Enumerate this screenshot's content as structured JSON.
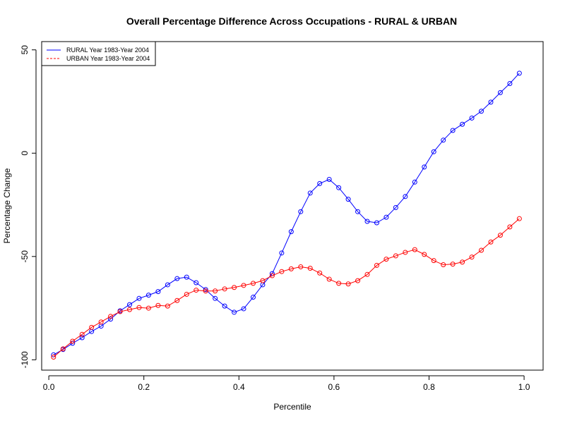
{
  "chart_data": {
    "type": "line",
    "title": "Overall Percentage Difference Across Occupations - RURAL & URBAN",
    "xlabel": "Percentile",
    "ylabel": "Percentage Change",
    "xlim": [
      -0.015,
      1.04
    ],
    "ylim": [
      -105,
      54
    ],
    "x_ticks": [
      0.0,
      0.2,
      0.4,
      0.6,
      0.8,
      1.0
    ],
    "x_tick_labels": [
      "0.0",
      "0.2",
      "0.4",
      "0.6",
      "0.8",
      "1.0"
    ],
    "y_ticks": [
      -100,
      -50,
      0,
      50
    ],
    "y_tick_labels": [
      "-100",
      "-50",
      "0",
      "50"
    ],
    "grid": false,
    "legend_position": "top-left",
    "series": [
      {
        "name": "RURAL Year 1983-Year 2004",
        "color": "#0000ff",
        "line_style": "solid",
        "marker": "circle",
        "x": [
          0.01,
          0.03,
          0.05,
          0.07,
          0.09,
          0.11,
          0.13,
          0.15,
          0.17,
          0.19,
          0.21,
          0.23,
          0.25,
          0.27,
          0.29,
          0.31,
          0.33,
          0.35,
          0.37,
          0.39,
          0.41,
          0.43,
          0.45,
          0.47,
          0.49,
          0.51,
          0.53,
          0.55,
          0.57,
          0.59,
          0.61,
          0.63,
          0.65,
          0.67,
          0.69,
          0.71,
          0.73,
          0.75,
          0.77,
          0.79,
          0.81,
          0.83,
          0.85,
          0.87,
          0.89,
          0.91,
          0.93,
          0.95,
          0.97,
          0.99
        ],
        "values": [
          -97.6,
          -95.0,
          -92.0,
          -89.3,
          -86.3,
          -83.7,
          -80.3,
          -76.3,
          -73.3,
          -70.3,
          -68.7,
          -67.0,
          -63.7,
          -60.7,
          -60.0,
          -62.7,
          -66.0,
          -70.3,
          -74.0,
          -77.0,
          -75.3,
          -69.7,
          -63.7,
          -58.3,
          -48.3,
          -38.0,
          -28.3,
          -19.3,
          -14.7,
          -12.7,
          -16.7,
          -22.3,
          -28.3,
          -33.0,
          -33.7,
          -31.0,
          -26.3,
          -21.0,
          -14.0,
          -6.7,
          0.7,
          6.3,
          11.0,
          14.0,
          17.0,
          20.3,
          24.7,
          29.3,
          33.7,
          38.7
        ]
      },
      {
        "name": "URBAN Year 1983-Year 2004",
        "color": "#ff0000",
        "line_style": "dashed",
        "marker": "circle",
        "x": [
          0.01,
          0.03,
          0.05,
          0.07,
          0.09,
          0.11,
          0.13,
          0.15,
          0.17,
          0.19,
          0.21,
          0.23,
          0.25,
          0.27,
          0.29,
          0.31,
          0.33,
          0.35,
          0.37,
          0.39,
          0.41,
          0.43,
          0.45,
          0.47,
          0.49,
          0.51,
          0.53,
          0.55,
          0.57,
          0.59,
          0.61,
          0.63,
          0.65,
          0.67,
          0.69,
          0.71,
          0.73,
          0.75,
          0.77,
          0.79,
          0.81,
          0.83,
          0.85,
          0.87,
          0.89,
          0.91,
          0.93,
          0.95,
          0.97,
          0.99
        ],
        "values": [
          -98.7,
          -94.7,
          -91.0,
          -87.7,
          -84.3,
          -81.7,
          -79.0,
          -76.7,
          -75.7,
          -74.7,
          -75.0,
          -73.7,
          -74.0,
          -71.3,
          -68.3,
          -66.3,
          -66.7,
          -66.7,
          -65.7,
          -65.0,
          -64.0,
          -63.0,
          -61.7,
          -59.3,
          -57.3,
          -56.0,
          -55.0,
          -55.7,
          -58.0,
          -61.0,
          -63.0,
          -63.3,
          -61.7,
          -58.7,
          -54.3,
          -51.3,
          -49.7,
          -48.0,
          -46.7,
          -49.0,
          -52.0,
          -54.0,
          -53.7,
          -52.7,
          -50.3,
          -47.0,
          -43.0,
          -39.7,
          -35.7,
          -31.7
        ]
      }
    ]
  }
}
